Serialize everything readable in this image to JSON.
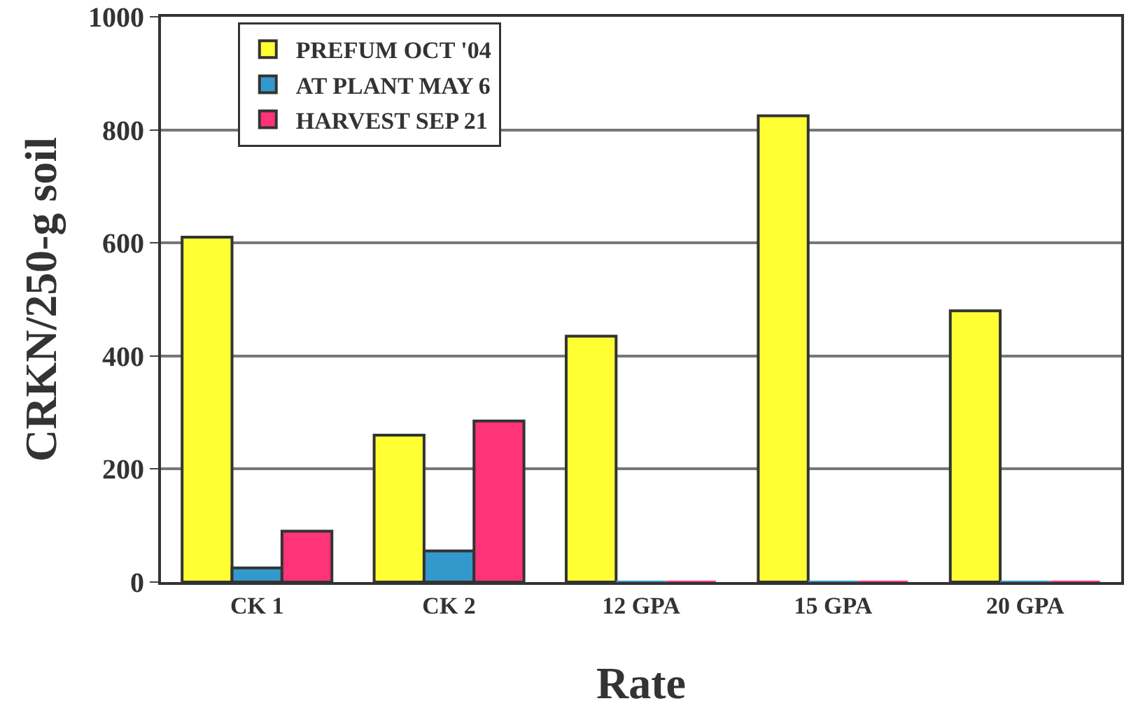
{
  "chart_data": {
    "type": "bar",
    "xlabel": "Rate",
    "ylabel": "CRKN/250-g soil",
    "categories": [
      "CK 1",
      "CK 2",
      "12 GPA",
      "15 GPA",
      "20 GPA"
    ],
    "series": [
      {
        "name": "PREFUM OCT '04",
        "color": "#ffff33",
        "values": [
          610,
          260,
          435,
          825,
          480
        ]
      },
      {
        "name": "AT PLANT MAY 6",
        "color": "#3399cc",
        "values": [
          25,
          55,
          0,
          0,
          0
        ]
      },
      {
        "name": "HARVEST SEP 21",
        "color": "#ff3377",
        "values": [
          90,
          285,
          0,
          0,
          0
        ]
      }
    ],
    "ylim": [
      0,
      1000
    ],
    "yticks": [
      0,
      200,
      400,
      600,
      800,
      1000
    ],
    "grid": "y",
    "legend": "top left"
  }
}
